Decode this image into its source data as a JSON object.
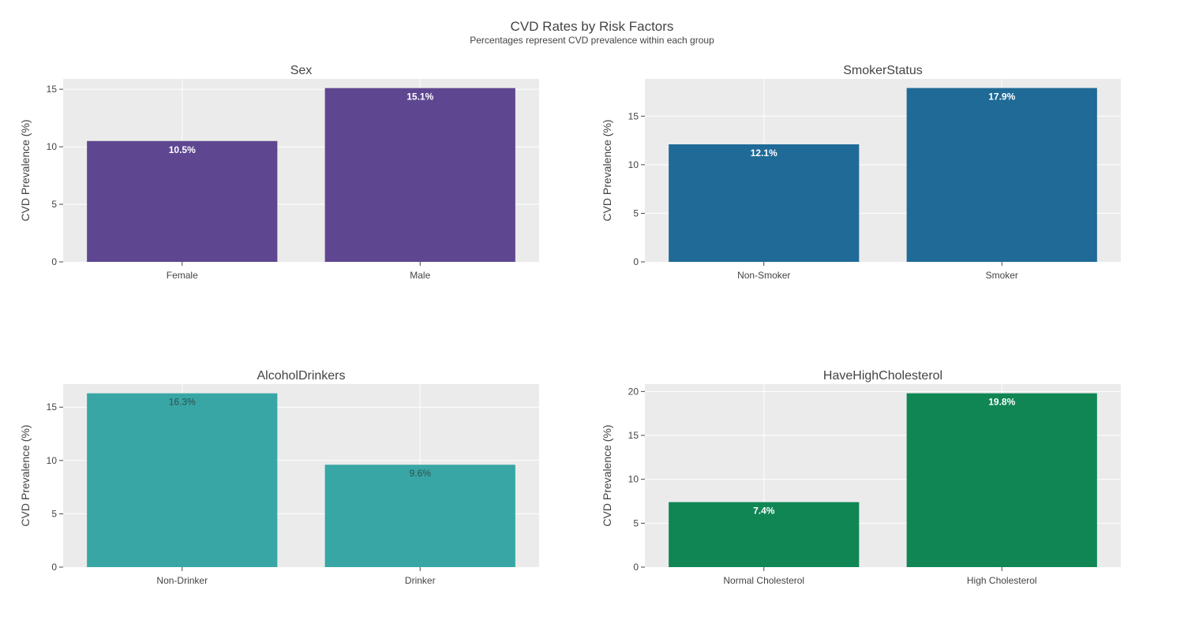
{
  "figure": {
    "title": "CVD Rates by Risk Factors",
    "subtitle": "Percentages represent CVD prevalence within each group"
  },
  "colors": {
    "plot_bg": "#ebebeb",
    "grid": "#ffffff",
    "axis_text": "#444444"
  },
  "chart_data": [
    {
      "type": "bar",
      "title": "Sex",
      "ylabel": "CVD Prevalence (%)",
      "categories": [
        "Female",
        "Male"
      ],
      "values": [
        10.5,
        15.1
      ],
      "data_labels": [
        "10.5%",
        "15.1%"
      ],
      "label_color": "#ffffff",
      "label_bold": true,
      "color": "#5e4790",
      "ylim": [
        0,
        15.9
      ],
      "yticks": [
        0,
        5,
        10,
        15
      ],
      "grid": true
    },
    {
      "type": "bar",
      "title": "SmokerStatus",
      "ylabel": "CVD Prevalence (%)",
      "categories": [
        "Non-Smoker",
        "Smoker"
      ],
      "values": [
        12.1,
        17.9
      ],
      "data_labels": [
        "12.1%",
        "17.9%"
      ],
      "label_color": "#ffffff",
      "label_bold": true,
      "color": "#1f6a96",
      "ylim": [
        0,
        18.84
      ],
      "yticks": [
        0,
        5,
        10,
        15
      ],
      "grid": true
    },
    {
      "type": "bar",
      "title": "AlcoholDrinkers",
      "ylabel": "CVD Prevalence (%)",
      "categories": [
        "Non-Drinker",
        "Drinker"
      ],
      "values": [
        16.3,
        9.6
      ],
      "data_labels": [
        "16.3%",
        "9.6%"
      ],
      "label_color": "#2d4f4f",
      "label_bold": false,
      "color": "#38a6a4",
      "ylim": [
        0,
        17.16
      ],
      "yticks": [
        0,
        5,
        10,
        15
      ],
      "grid": true
    },
    {
      "type": "bar",
      "title": "HaveHighCholesterol",
      "ylabel": "CVD Prevalence (%)",
      "categories": [
        "Normal Cholesterol",
        "High Cholesterol"
      ],
      "values": [
        7.4,
        19.8
      ],
      "data_labels": [
        "7.4%",
        "19.8%"
      ],
      "label_color": "#ffffff",
      "label_bold": true,
      "color": "#108655",
      "ylim": [
        0,
        20.84
      ],
      "yticks": [
        0,
        5,
        10,
        15,
        20
      ],
      "grid": true
    }
  ]
}
